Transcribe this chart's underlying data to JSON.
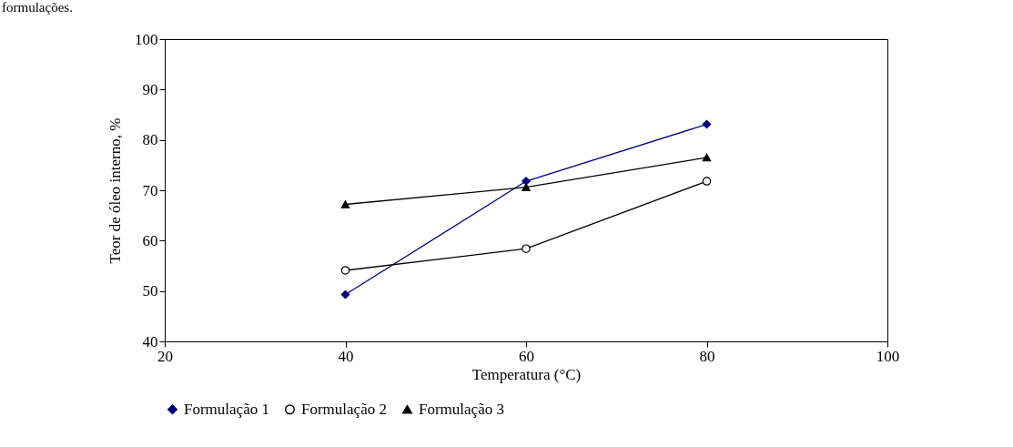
{
  "chart_data": {
    "type": "line",
    "xlabel": "Temperatura (°C)",
    "ylabel": "Teor de óleo interno, %",
    "annotations": [
      "formulações."
    ],
    "x": [
      40,
      60,
      80
    ],
    "series": [
      {
        "name": "Formulação 1",
        "color": "#000080",
        "values": [
          49.3,
          71.8,
          83.1
        ],
        "marker": "diamond"
      },
      {
        "name": "Formulação 2",
        "color": "#000000",
        "values": [
          54.1,
          58.4,
          71.8
        ],
        "marker": "circle"
      },
      {
        "name": "Formulação 3",
        "color": "#000000",
        "values": [
          67.2,
          70.6,
          76.5
        ],
        "marker": "triangle"
      }
    ],
    "xlim": [
      20,
      100
    ],
    "xticks": [
      20,
      40,
      60,
      80,
      100
    ],
    "ylim": [
      40,
      100
    ],
    "yticks": [
      40,
      50,
      60,
      70,
      80,
      90,
      100
    ],
    "grid": false,
    "legend": "bottom",
    "line_style": "solid"
  }
}
